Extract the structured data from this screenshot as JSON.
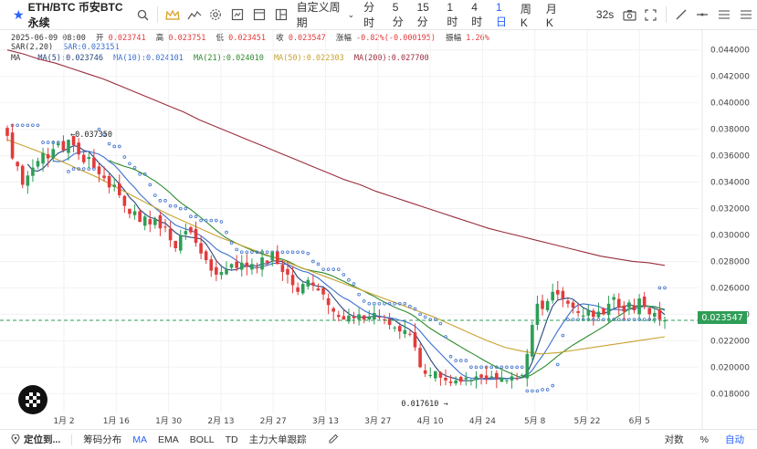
{
  "toolbar": {
    "symbol": "ETH/BTC 币安BTC永续",
    "custom_period": "自定义周期",
    "intervals": [
      "分时",
      "5分",
      "15分",
      "1时",
      "4时",
      "1日",
      "周K",
      "月K"
    ],
    "active_interval": "1日",
    "countdown": "32s"
  },
  "legend": {
    "date": "2025-06-09 08:00",
    "open_label": "开",
    "open": "0.023741",
    "high_label": "高",
    "high": "0.023751",
    "low_label": "低",
    "low": "0.023451",
    "close_label": "收",
    "close": "0.023547",
    "change_label": "涨幅",
    "change": "-0.82%(-0.000195)",
    "amp_label": "振幅",
    "amp": "1.26%",
    "sar_name": "SAR(2,20)",
    "sar_value": "SAR:0.023151",
    "ma_name": "MA",
    "ma5": "MA(5):0.023746",
    "ma10": "MA(10):0.024101",
    "ma21": "MA(21):0.024010",
    "ma50": "MA(50):0.022303",
    "ma200": "MA(200):0.027700"
  },
  "colors": {
    "up": "#2e9e57",
    "down": "#e23b3b",
    "ma5": "#26457f",
    "ma10": "#3a6fd0",
    "ma21": "#2e8b2e",
    "ma50": "#c8a230",
    "ma200": "#9b2c3c",
    "sar": "#3a6fd0"
  },
  "bottom": {
    "locate": "定位到...",
    "tabs": [
      "筹码分布",
      "MA",
      "EMA",
      "BOLL",
      "TD",
      "主力大单跟踪"
    ],
    "active_tab": "MA",
    "right": [
      "对数",
      "%",
      "自动"
    ]
  },
  "chart_data": {
    "type": "candlestick",
    "ylim": [
      0.0165,
      0.0455
    ],
    "y_ticks": [
      "0.044000",
      "0.042000",
      "0.040000",
      "0.038000",
      "0.036000",
      "0.034000",
      "0.032000",
      "0.030000",
      "0.028000",
      "0.026000",
      "0.024000",
      "0.022000",
      "0.020000",
      "0.018000"
    ],
    "x_ticks": [
      "1月 2",
      "1月 16",
      "1月 30",
      "2月 13",
      "2月 27",
      "3月 13",
      "3月 27",
      "4月 10",
      "4月 24",
      "5月 8",
      "5月 22",
      "6月 5"
    ],
    "last_price": "0.023547",
    "high_annotation": "0.037350",
    "low_annotation": "0.017610",
    "closes": [
      0.0375,
      0.0358,
      0.0352,
      0.0338,
      0.0345,
      0.0351,
      0.0356,
      0.0362,
      0.0358,
      0.0365,
      0.0369,
      0.0364,
      0.0372,
      0.0368,
      0.0361,
      0.0355,
      0.0359,
      0.0351,
      0.0346,
      0.0343,
      0.0336,
      0.0338,
      0.033,
      0.0322,
      0.0316,
      0.0318,
      0.031,
      0.0314,
      0.0308,
      0.0312,
      0.0305,
      0.0306,
      0.0296,
      0.029,
      0.03,
      0.0303,
      0.0302,
      0.0294,
      0.0286,
      0.0281,
      0.0273,
      0.027,
      0.0272,
      0.0274,
      0.0278,
      0.0275,
      0.0279,
      0.0276,
      0.0278,
      0.0275,
      0.0283,
      0.0279,
      0.0287,
      0.0278,
      0.0272,
      0.027,
      0.0262,
      0.0257,
      0.0263,
      0.0266,
      0.0262,
      0.0258,
      0.0255,
      0.0247,
      0.0242,
      0.0238,
      0.0236,
      0.0239,
      0.0237,
      0.024,
      0.0236,
      0.0238,
      0.0241,
      0.0238,
      0.0236,
      0.0232,
      0.023,
      0.0227,
      0.0228,
      0.0225,
      0.0215,
      0.02,
      0.0195,
      0.0194,
      0.0197,
      0.0192,
      0.019,
      0.0188,
      0.019,
      0.0189,
      0.0192,
      0.019,
      0.0193,
      0.0192,
      0.0191,
      0.0193,
      0.0191,
      0.0192,
      0.019,
      0.0193,
      0.0191,
      0.0194,
      0.021,
      0.0232,
      0.0248,
      0.0244,
      0.025,
      0.0257,
      0.0255,
      0.0252,
      0.0248,
      0.0245,
      0.0241,
      0.0239,
      0.0243,
      0.0238,
      0.0242,
      0.024,
      0.0248,
      0.0253,
      0.0245,
      0.0242,
      0.0249,
      0.0243,
      0.0252,
      0.0246,
      0.024,
      0.0241,
      0.0236,
      0.02355
    ],
    "ma200": [
      0.044,
      0.0437,
      0.0433,
      0.043,
      0.0426,
      0.0422,
      0.0418,
      0.0413,
      0.0408,
      0.0403,
      0.0398,
      0.0393,
      0.0387,
      0.0382,
      0.0377,
      0.0372,
      0.0367,
      0.0362,
      0.0357,
      0.0352,
      0.0347,
      0.0342,
      0.0338,
      0.0333,
      0.0329,
      0.0325,
      0.0321,
      0.0317,
      0.0313,
      0.0309,
      0.0305,
      0.0302,
      0.0299,
      0.0296,
      0.0293,
      0.029,
      0.0287,
      0.0284,
      0.0282,
      0.028,
      0.0279,
      0.0277
    ],
    "ma50": [
      0.0372,
      0.0367,
      0.0362,
      0.0356,
      0.035,
      0.0344,
      0.0337,
      0.033,
      0.0323,
      0.0316,
      0.031,
      0.0304,
      0.0298,
      0.0293,
      0.0288,
      0.0283,
      0.0278,
      0.0273,
      0.0268,
      0.0263,
      0.0258,
      0.0253,
      0.0248,
      0.0243,
      0.0238,
      0.0232,
      0.0226,
      0.022,
      0.0215,
      0.0212,
      0.021,
      0.0211,
      0.0213,
      0.0215,
      0.0217,
      0.0219,
      0.0221,
      0.0223
    ]
  }
}
